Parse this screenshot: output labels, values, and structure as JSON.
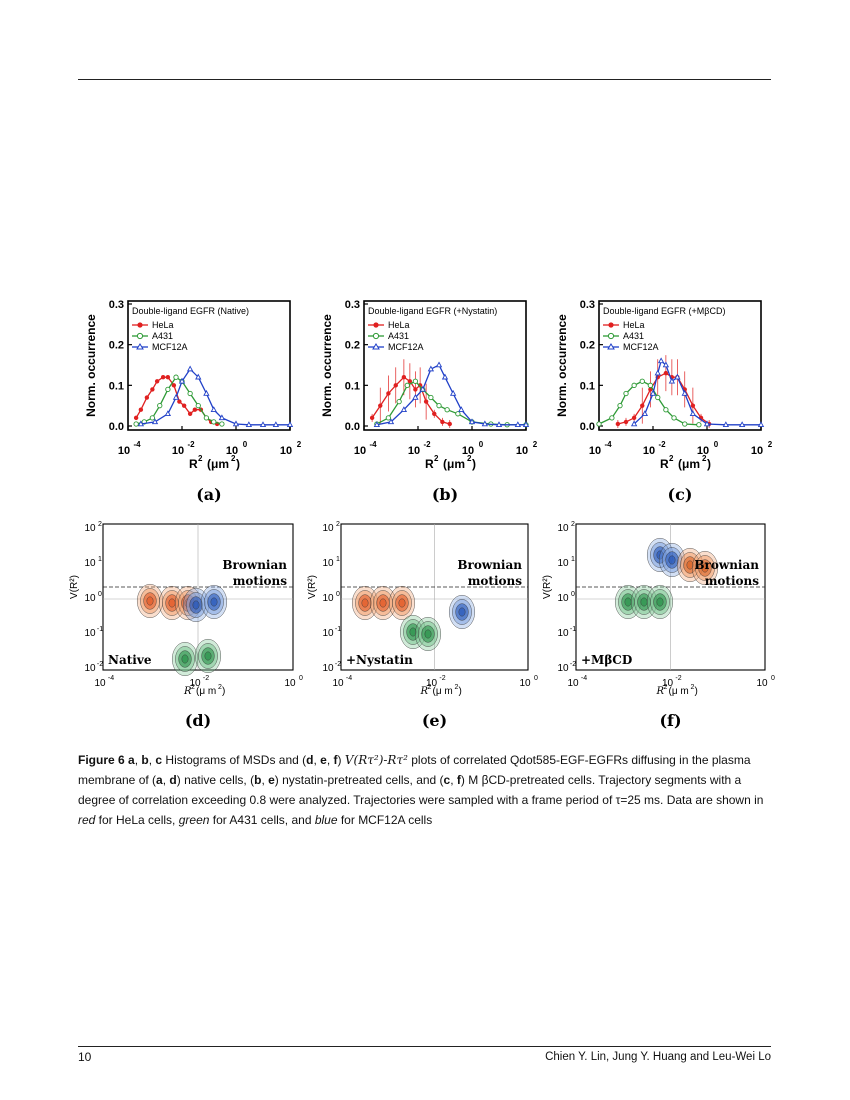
{
  "page": {
    "number": "10",
    "authors": "Chien Y. Lin, Jung Y. Huang and Leu-Wei Lo"
  },
  "figure": {
    "colors": {
      "HeLa": "#e02020",
      "A431": "#2e9a36",
      "MCF12A": "#2040c8"
    },
    "histograms": [
      {
        "id": "a",
        "label": "(a)",
        "title": "Double-ligand EGFR (Native)",
        "ylabel": "Norm. occurrence",
        "xlabel": "R",
        "xunit": "(μm",
        "legend": [
          "HeLa",
          "A431",
          "MCF12A"
        ],
        "yticks": [
          "0.0",
          "0.1",
          "0.2",
          "0.3"
        ],
        "xticks": [
          "10",
          "10",
          "10",
          "10"
        ],
        "xtick_exp": [
          "-4",
          "-2",
          "0",
          "2"
        ],
        "chart_data": {
          "type": "line",
          "xscale": "log",
          "xlim": [
            0.0001,
            100
          ],
          "ylim": [
            0,
            0.3
          ],
          "series": [
            {
              "name": "HeLa",
              "x": [
                0.0002,
                0.0003,
                0.0005,
                0.0008,
                0.0012,
                0.002,
                0.003,
                0.005,
                0.008,
                0.012,
                0.02,
                0.03,
                0.05,
                0.08,
                0.12,
                0.2
              ],
              "y": [
                0.02,
                0.04,
                0.07,
                0.09,
                0.11,
                0.12,
                0.12,
                0.1,
                0.06,
                0.05,
                0.03,
                0.04,
                0.04,
                0.02,
                0.01,
                0.005
              ]
            },
            {
              "name": "A431",
              "x": [
                0.0002,
                0.0004,
                0.0008,
                0.0015,
                0.003,
                0.006,
                0.01,
                0.02,
                0.04,
                0.08,
                0.15,
                0.3
              ],
              "y": [
                0.005,
                0.01,
                0.02,
                0.05,
                0.09,
                0.12,
                0.11,
                0.08,
                0.05,
                0.02,
                0.01,
                0.005
              ]
            },
            {
              "name": "MCF12A",
              "x": [
                0.0003,
                0.001,
                0.003,
                0.006,
                0.01,
                0.02,
                0.04,
                0.08,
                0.15,
                0.3,
                1,
                3,
                10,
                30,
                100
              ],
              "y": [
                0.005,
                0.01,
                0.03,
                0.07,
                0.11,
                0.14,
                0.12,
                0.08,
                0.04,
                0.02,
                0.005,
                0.003,
                0.003,
                0.003,
                0.003
              ]
            }
          ]
        }
      },
      {
        "id": "b",
        "label": "(b)",
        "title": "Double-ligand EGFR (+Nystatin)",
        "ylabel": "Norm. occurrence",
        "xlabel": "R",
        "xunit": "(μm",
        "legend": [
          "HeLa",
          "A431",
          "MCF12A"
        ],
        "yticks": [
          "0.0",
          "0.1",
          "0.2",
          "0.3"
        ],
        "xticks": [
          "10",
          "10",
          "10",
          "10"
        ],
        "xtick_exp": [
          "-4",
          "-2",
          "0",
          "2"
        ],
        "chart_data": {
          "type": "line",
          "xscale": "log",
          "xlim": [
            0.0001,
            100
          ],
          "ylim": [
            0,
            0.3
          ],
          "series": [
            {
              "name": "HeLa",
              "x": [
                0.0002,
                0.0004,
                0.0008,
                0.0015,
                0.003,
                0.005,
                0.008,
                0.012,
                0.02,
                0.04,
                0.08,
                0.15
              ],
              "y": [
                0.02,
                0.05,
                0.08,
                0.1,
                0.12,
                0.11,
                0.09,
                0.1,
                0.06,
                0.03,
                0.01,
                0.005
              ]
            },
            {
              "name": "A431",
              "x": [
                0.0003,
                0.0008,
                0.002,
                0.004,
                0.008,
                0.015,
                0.03,
                0.06,
                0.12,
                0.3,
                1,
                5,
                20,
                100
              ],
              "y": [
                0.005,
                0.02,
                0.06,
                0.1,
                0.11,
                0.09,
                0.07,
                0.05,
                0.04,
                0.03,
                0.01,
                0.005,
                0.003,
                0.003
              ]
            },
            {
              "name": "MCF12A",
              "x": [
                0.0003,
                0.001,
                0.003,
                0.008,
                0.015,
                0.03,
                0.06,
                0.1,
                0.2,
                0.4,
                1,
                3,
                10,
                50,
                100
              ],
              "y": [
                0.003,
                0.01,
                0.04,
                0.07,
                0.09,
                0.14,
                0.15,
                0.12,
                0.08,
                0.04,
                0.01,
                0.005,
                0.003,
                0.003,
                0.003
              ]
            }
          ]
        }
      },
      {
        "id": "c",
        "label": "(c)",
        "title": "Double-ligand EGFR (+MβCD)",
        "ylabel": "Norm. occurrence",
        "xlabel": "R",
        "xunit": "(μm",
        "legend": [
          "HeLa",
          "A431",
          "MCF12A"
        ],
        "yticks": [
          "0.0",
          "0.1",
          "0.2",
          "0.3"
        ],
        "xticks": [
          "10",
          "10",
          "10",
          "10"
        ],
        "xtick_exp": [
          "-4",
          "-2",
          "0",
          "2"
        ],
        "chart_data": {
          "type": "line",
          "xscale": "log",
          "xlim": [
            0.0001,
            100
          ],
          "ylim": [
            0,
            0.3
          ],
          "series": [
            {
              "name": "HeLa",
              "x": [
                0.0005,
                0.001,
                0.002,
                0.004,
                0.008,
                0.015,
                0.03,
                0.05,
                0.08,
                0.15,
                0.3,
                0.6,
                1.2
              ],
              "y": [
                0.005,
                0.01,
                0.02,
                0.05,
                0.09,
                0.12,
                0.13,
                0.12,
                0.12,
                0.09,
                0.05,
                0.02,
                0.005
              ]
            },
            {
              "name": "A431",
              "x": [
                0.0001,
                0.0003,
                0.0006,
                0.001,
                0.002,
                0.004,
                0.008,
                0.015,
                0.03,
                0.06,
                0.15,
                0.5
              ],
              "y": [
                0.005,
                0.02,
                0.05,
                0.08,
                0.1,
                0.11,
                0.1,
                0.07,
                0.04,
                0.02,
                0.005,
                0.003
              ]
            },
            {
              "name": "MCF12A",
              "x": [
                0.002,
                0.005,
                0.01,
                0.015,
                0.02,
                0.03,
                0.05,
                0.08,
                0.15,
                0.3,
                1,
                5,
                20,
                100
              ],
              "y": [
                0.005,
                0.03,
                0.08,
                0.13,
                0.16,
                0.15,
                0.11,
                0.12,
                0.08,
                0.03,
                0.005,
                0.003,
                0.003,
                0.003
              ]
            }
          ]
        }
      }
    ],
    "contours": [
      {
        "id": "d",
        "label": "(d)",
        "condition": "Native",
        "annotation": [
          "Brownian",
          "motions"
        ],
        "ylabel": "V(R",
        "xlabel": "R",
        "yticks_exp": [
          "2",
          "1",
          "0",
          "-1",
          "-2"
        ],
        "xticks_exp": [
          "-4",
          "-2",
          "0"
        ]
      },
      {
        "id": "e",
        "label": "(e)",
        "condition": "+Nystatin",
        "annotation": [
          "Brownian",
          "motions"
        ],
        "ylabel": "V(R",
        "xlabel": "R",
        "yticks_exp": [
          "2",
          "1",
          "0",
          "-1",
          "-2"
        ],
        "xticks_exp": [
          "-4",
          "-2",
          "0"
        ]
      },
      {
        "id": "f",
        "label": "(f)",
        "condition": "+MβCD",
        "annotation": [
          "Brownian",
          "motions"
        ],
        "ylabel": "V(R",
        "xlabel": "R",
        "yticks_exp": [
          "2",
          "1",
          "0",
          "-1",
          "-2"
        ],
        "xticks_exp": [
          "-4",
          "-2",
          "0"
        ]
      }
    ]
  },
  "caption": {
    "fig": "Figure 6",
    "parts": [
      " ",
      "a",
      ", ",
      "b",
      ", ",
      "c",
      " Histograms of MSDs and (",
      "d",
      ", ",
      "e",
      ", ",
      "f",
      ") "
    ],
    "math": "V(Rτ²)-Rτ²",
    "rest1": " plots of correlated Qdot585-EGF-EGFRs diffusing in the plasma membrane of (",
    "a2": "a",
    "c1": ", ",
    "d2": "d",
    "rest2": ") native cells, (",
    "b2": "b",
    "c2": ", ",
    "e2": "e",
    "rest3": ") nystatin-pretreated cells, and (",
    "c3": "c",
    "c4": ", ",
    "f2": "f",
    "rest4": ") M βCD-pretreated cells. Trajectory segments with a degree of correlation exceeding 0.8 were analyzed. Trajectories were sampled with a frame period of τ=25 ms. Data are shown in ",
    "red": "red",
    "rest5": " for HeLa cells, ",
    "green": "green",
    "rest6": " for A431 cells, and ",
    "blue": "blue",
    "rest7": " for MCF12A cells"
  }
}
